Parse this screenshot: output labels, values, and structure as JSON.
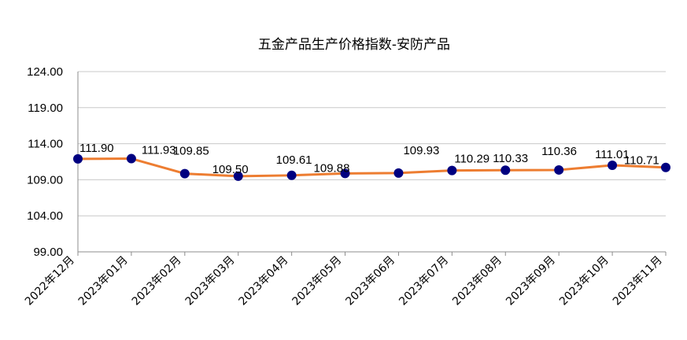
{
  "chart_data": {
    "type": "line",
    "title": "五金产品生产价格指数-安防产品",
    "xlabel": "",
    "ylabel": "",
    "categories": [
      "2022年12月",
      "2023年01月",
      "2023年02月",
      "2023年03月",
      "2023年04月",
      "2023年05月",
      "2023年06月",
      "2023年07月",
      "2023年08月",
      "2023年09月",
      "2023年10月",
      "2023年11月"
    ],
    "series": [
      {
        "values": [
          111.9,
          111.93,
          109.85,
          109.5,
          109.61,
          109.88,
          109.93,
          110.29,
          110.33,
          110.36,
          111.01,
          110.71
        ],
        "labels": [
          "111.90",
          "111.93",
          "109.85",
          "109.50",
          "109.61",
          "109.88",
          "109.93",
          "110.29",
          "110.33",
          "110.36",
          "111.01",
          "110.71"
        ]
      }
    ],
    "yticks": [
      "99.00",
      "104.00",
      "109.00",
      "114.00",
      "119.00",
      "124.00"
    ],
    "ylim": [
      99,
      124
    ],
    "grid": true,
    "legend": "none",
    "colors": {
      "line": "#ed7d31",
      "marker": "#000080"
    }
  }
}
